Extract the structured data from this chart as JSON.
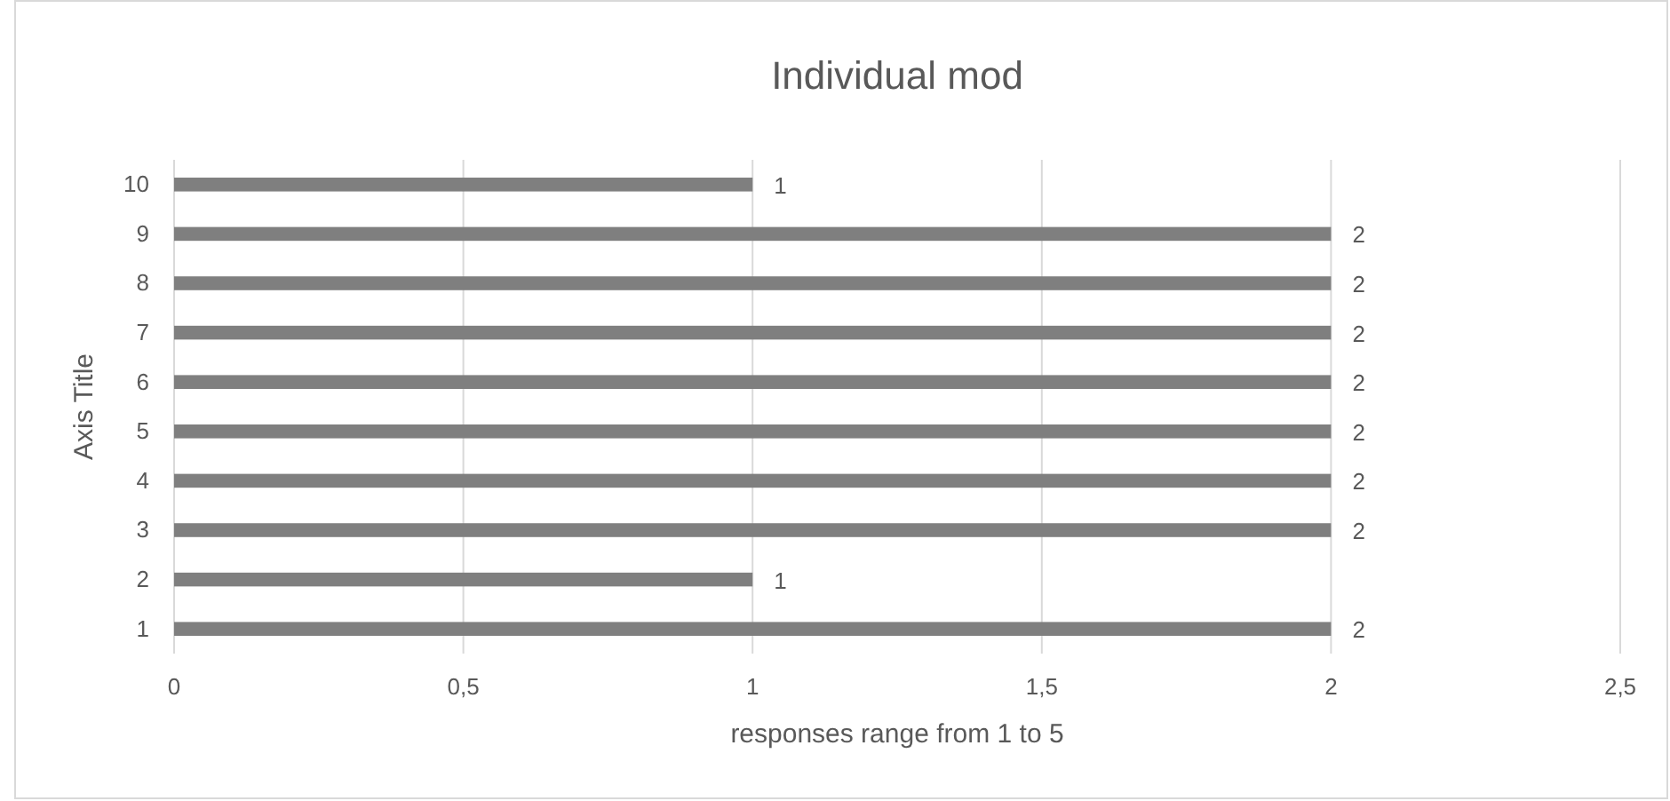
{
  "chart_data": {
    "type": "bar",
    "orientation": "horizontal",
    "title": "Individual mod",
    "xlabel": "responses range from 1 to 5",
    "ylabel": "Axis Title",
    "categories": [
      "10",
      "9",
      "8",
      "7",
      "6",
      "5",
      "4",
      "3",
      "2",
      "1"
    ],
    "values": [
      1,
      2,
      2,
      2,
      2,
      2,
      2,
      2,
      1,
      2
    ],
    "color": "#7f7f7f",
    "xlim": [
      0,
      2.5
    ],
    "xticks": [
      0,
      {
        "value": 0.5,
        "label": "0,5"
      },
      1,
      {
        "value": 1.5,
        "label": "1,5"
      },
      2,
      {
        "value": 2.5,
        "label": "2,5"
      }
    ],
    "grid": "x",
    "data_labels": true
  }
}
